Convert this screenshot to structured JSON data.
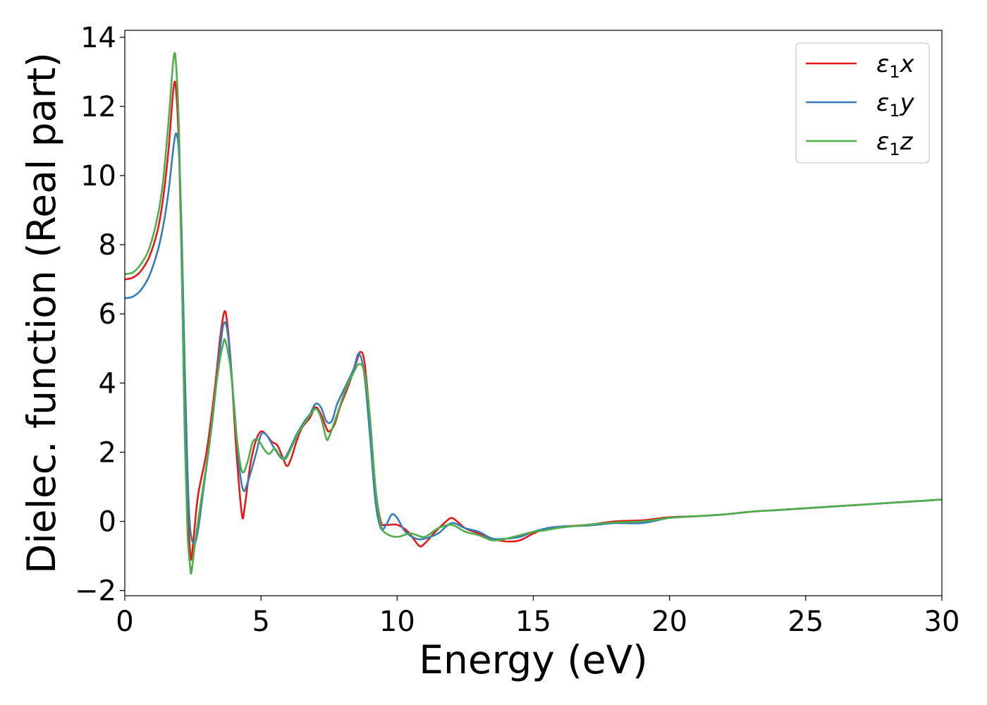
{
  "chart_data": {
    "type": "line",
    "title": "",
    "xlabel": "Energy (eV)",
    "ylabel": "Dielec. function (Real part)",
    "xlim": [
      0,
      30
    ],
    "ylim": [
      -2.15,
      14.2
    ],
    "xticks": [
      0,
      5,
      10,
      15,
      20,
      25,
      30
    ],
    "xtick_labels": [
      "0",
      "5",
      "10",
      "15",
      "20",
      "25",
      "30"
    ],
    "yticks": [
      -2,
      0,
      2,
      4,
      6,
      8,
      10,
      12,
      14
    ],
    "ytick_labels": [
      "−2",
      "0",
      "2",
      "4",
      "6",
      "8",
      "10",
      "12",
      "14"
    ],
    "grid": false,
    "legend_position": "top-right",
    "series": [
      {
        "name": "ε₁x",
        "legend_base": "ε",
        "legend_sub": "1",
        "legend_tail": "x",
        "color": "#e41a1c",
        "points": [
          [
            0,
            7.0
          ],
          [
            0.3,
            7.05
          ],
          [
            0.6,
            7.25
          ],
          [
            0.9,
            7.65
          ],
          [
            1.2,
            8.4
          ],
          [
            1.4,
            9.3
          ],
          [
            1.6,
            10.7
          ],
          [
            1.8,
            12.6
          ],
          [
            1.9,
            12.3
          ],
          [
            2.0,
            10.5
          ],
          [
            2.1,
            7.0
          ],
          [
            2.2,
            3.0
          ],
          [
            2.3,
            0.5
          ],
          [
            2.4,
            -0.9
          ],
          [
            2.45,
            -1.05
          ],
          [
            2.55,
            -0.3
          ],
          [
            2.7,
            0.8
          ],
          [
            3.0,
            2.0
          ],
          [
            3.3,
            3.8
          ],
          [
            3.5,
            5.3
          ],
          [
            3.65,
            6.05
          ],
          [
            3.75,
            5.8
          ],
          [
            3.9,
            4.5
          ],
          [
            4.1,
            2.0
          ],
          [
            4.3,
            0.2
          ],
          [
            4.4,
            0.4
          ],
          [
            4.6,
            1.6
          ],
          [
            4.8,
            2.3
          ],
          [
            5.0,
            2.6
          ],
          [
            5.2,
            2.5
          ],
          [
            5.4,
            2.3
          ],
          [
            5.6,
            2.2
          ],
          [
            5.8,
            1.85
          ],
          [
            5.95,
            1.6
          ],
          [
            6.1,
            1.8
          ],
          [
            6.3,
            2.3
          ],
          [
            6.5,
            2.7
          ],
          [
            6.8,
            3.0
          ],
          [
            7.0,
            3.3
          ],
          [
            7.2,
            3.1
          ],
          [
            7.4,
            2.7
          ],
          [
            7.5,
            2.6
          ],
          [
            7.7,
            2.8
          ],
          [
            7.9,
            3.3
          ],
          [
            8.2,
            3.9
          ],
          [
            8.5,
            4.6
          ],
          [
            8.65,
            4.9
          ],
          [
            8.8,
            4.6
          ],
          [
            9.0,
            3.0
          ],
          [
            9.2,
            1.0
          ],
          [
            9.4,
            0.0
          ],
          [
            9.6,
            -0.1
          ],
          [
            10.0,
            -0.1
          ],
          [
            10.4,
            -0.3
          ],
          [
            10.8,
            -0.7
          ],
          [
            11.0,
            -0.65
          ],
          [
            11.4,
            -0.3
          ],
          [
            11.8,
            0.0
          ],
          [
            12.0,
            0.1
          ],
          [
            12.2,
            0.0
          ],
          [
            12.5,
            -0.2
          ],
          [
            13.0,
            -0.35
          ],
          [
            13.5,
            -0.5
          ],
          [
            14.0,
            -0.58
          ],
          [
            14.5,
            -0.55
          ],
          [
            15.0,
            -0.35
          ],
          [
            15.5,
            -0.2
          ],
          [
            16.0,
            -0.15
          ],
          [
            17.0,
            -0.1
          ],
          [
            18.0,
            0.0
          ],
          [
            19.0,
            0.03
          ],
          [
            20.0,
            0.12
          ],
          [
            21.0,
            0.15
          ],
          [
            22.0,
            0.2
          ],
          [
            23.0,
            0.28
          ],
          [
            24.0,
            0.33
          ],
          [
            25.0,
            0.38
          ],
          [
            26.0,
            0.43
          ],
          [
            27.0,
            0.48
          ],
          [
            28.0,
            0.53
          ],
          [
            29.0,
            0.58
          ],
          [
            30.0,
            0.63
          ]
        ]
      },
      {
        "name": "ε₁y",
        "legend_base": "ε",
        "legend_sub": "1",
        "legend_tail": "y",
        "color": "#377eb8",
        "points": [
          [
            0,
            6.45
          ],
          [
            0.3,
            6.5
          ],
          [
            0.6,
            6.7
          ],
          [
            0.9,
            7.1
          ],
          [
            1.2,
            7.8
          ],
          [
            1.4,
            8.5
          ],
          [
            1.6,
            9.5
          ],
          [
            1.8,
            10.9
          ],
          [
            1.9,
            11.2
          ],
          [
            2.0,
            10.5
          ],
          [
            2.1,
            8.0
          ],
          [
            2.2,
            4.5
          ],
          [
            2.3,
            1.5
          ],
          [
            2.4,
            -0.2
          ],
          [
            2.55,
            -0.65
          ],
          [
            2.7,
            -0.2
          ],
          [
            2.9,
            1.0
          ],
          [
            3.2,
            2.8
          ],
          [
            3.5,
            5.0
          ],
          [
            3.65,
            5.75
          ],
          [
            3.8,
            5.3
          ],
          [
            4.0,
            3.5
          ],
          [
            4.2,
            1.6
          ],
          [
            4.35,
            0.9
          ],
          [
            4.5,
            1.1
          ],
          [
            4.8,
            1.9
          ],
          [
            5.0,
            2.5
          ],
          [
            5.2,
            2.5
          ],
          [
            5.5,
            2.1
          ],
          [
            5.8,
            1.8
          ],
          [
            6.0,
            2.0
          ],
          [
            6.3,
            2.5
          ],
          [
            6.6,
            2.9
          ],
          [
            6.8,
            3.1
          ],
          [
            7.0,
            3.4
          ],
          [
            7.2,
            3.3
          ],
          [
            7.4,
            2.9
          ],
          [
            7.6,
            2.9
          ],
          [
            7.8,
            3.4
          ],
          [
            8.1,
            3.9
          ],
          [
            8.4,
            4.4
          ],
          [
            8.6,
            4.85
          ],
          [
            8.8,
            4.2
          ],
          [
            9.0,
            2.5
          ],
          [
            9.2,
            0.6
          ],
          [
            9.4,
            -0.2
          ],
          [
            9.6,
            -0.1
          ],
          [
            9.8,
            0.2
          ],
          [
            10.0,
            0.1
          ],
          [
            10.3,
            -0.3
          ],
          [
            10.7,
            -0.5
          ],
          [
            11.0,
            -0.5
          ],
          [
            11.5,
            -0.35
          ],
          [
            12.0,
            -0.05
          ],
          [
            12.5,
            -0.2
          ],
          [
            13.0,
            -0.3
          ],
          [
            13.5,
            -0.5
          ],
          [
            14.0,
            -0.5
          ],
          [
            14.5,
            -0.45
          ],
          [
            15.0,
            -0.3
          ],
          [
            15.5,
            -0.2
          ],
          [
            16.0,
            -0.15
          ],
          [
            17.0,
            -0.12
          ],
          [
            18.0,
            -0.05
          ],
          [
            19.0,
            -0.05
          ],
          [
            20.0,
            0.1
          ],
          [
            21.0,
            0.15
          ],
          [
            22.0,
            0.2
          ],
          [
            23.0,
            0.28
          ],
          [
            24.0,
            0.33
          ],
          [
            25.0,
            0.38
          ],
          [
            26.0,
            0.43
          ],
          [
            27.0,
            0.48
          ],
          [
            28.0,
            0.53
          ],
          [
            29.0,
            0.58
          ],
          [
            30.0,
            0.63
          ]
        ]
      },
      {
        "name": "ε₁z",
        "legend_base": "ε",
        "legend_sub": "1",
        "legend_tail": "z",
        "color": "#4daf4a",
        "points": [
          [
            0,
            7.15
          ],
          [
            0.3,
            7.2
          ],
          [
            0.6,
            7.45
          ],
          [
            0.9,
            7.9
          ],
          [
            1.2,
            8.8
          ],
          [
            1.4,
            9.8
          ],
          [
            1.6,
            11.5
          ],
          [
            1.8,
            13.45
          ],
          [
            1.9,
            13.0
          ],
          [
            2.0,
            11.0
          ],
          [
            2.1,
            7.0
          ],
          [
            2.2,
            2.5
          ],
          [
            2.3,
            -0.3
          ],
          [
            2.4,
            -1.3
          ],
          [
            2.45,
            -1.45
          ],
          [
            2.6,
            -0.5
          ],
          [
            2.8,
            0.6
          ],
          [
            3.1,
            2.2
          ],
          [
            3.4,
            4.2
          ],
          [
            3.6,
            5.1
          ],
          [
            3.7,
            5.2
          ],
          [
            3.9,
            4.3
          ],
          [
            4.1,
            2.5
          ],
          [
            4.3,
            1.45
          ],
          [
            4.5,
            1.7
          ],
          [
            4.7,
            2.3
          ],
          [
            4.9,
            2.35
          ],
          [
            5.1,
            2.1
          ],
          [
            5.3,
            1.95
          ],
          [
            5.5,
            2.1
          ],
          [
            5.7,
            1.9
          ],
          [
            5.9,
            1.8
          ],
          [
            6.1,
            2.1
          ],
          [
            6.4,
            2.6
          ],
          [
            6.7,
            2.95
          ],
          [
            7.0,
            3.25
          ],
          [
            7.2,
            3.0
          ],
          [
            7.4,
            2.4
          ],
          [
            7.5,
            2.45
          ],
          [
            7.8,
            3.1
          ],
          [
            8.1,
            3.8
          ],
          [
            8.4,
            4.3
          ],
          [
            8.6,
            4.55
          ],
          [
            8.8,
            4.3
          ],
          [
            9.0,
            3.0
          ],
          [
            9.2,
            1.0
          ],
          [
            9.4,
            -0.1
          ],
          [
            9.6,
            -0.35
          ],
          [
            10.0,
            -0.45
          ],
          [
            10.5,
            -0.35
          ],
          [
            11.0,
            -0.45
          ],
          [
            11.5,
            -0.2
          ],
          [
            12.0,
            -0.1
          ],
          [
            12.5,
            -0.3
          ],
          [
            13.0,
            -0.4
          ],
          [
            13.5,
            -0.55
          ],
          [
            14.0,
            -0.5
          ],
          [
            14.5,
            -0.4
          ],
          [
            15.0,
            -0.3
          ],
          [
            15.5,
            -0.25
          ],
          [
            16.0,
            -0.18
          ],
          [
            17.0,
            -0.1
          ],
          [
            18.0,
            -0.03
          ],
          [
            19.0,
            0.0
          ],
          [
            20.0,
            0.1
          ],
          [
            21.0,
            0.15
          ],
          [
            22.0,
            0.2
          ],
          [
            23.0,
            0.28
          ],
          [
            24.0,
            0.33
          ],
          [
            25.0,
            0.38
          ],
          [
            26.0,
            0.43
          ],
          [
            27.0,
            0.48
          ],
          [
            28.0,
            0.53
          ],
          [
            29.0,
            0.58
          ],
          [
            30.0,
            0.63
          ]
        ]
      }
    ]
  }
}
